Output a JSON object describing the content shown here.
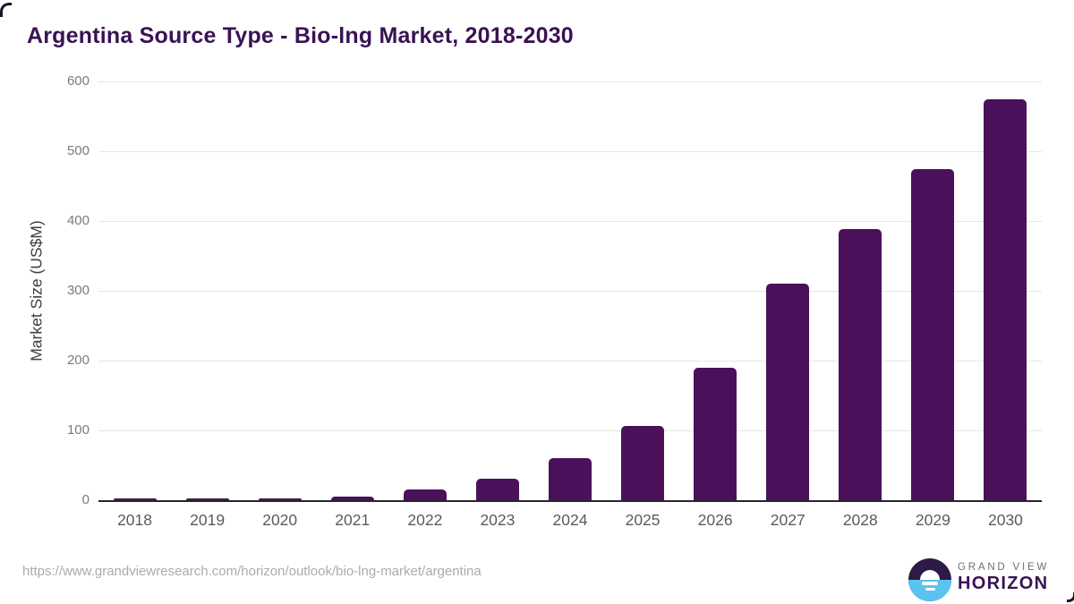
{
  "chart_data": {
    "type": "bar",
    "title": "Argentina Source Type - Bio-lng Market, 2018-2030",
    "xlabel": "",
    "ylabel": "Market Size (US$M)",
    "categories": [
      "2018",
      "2019",
      "2020",
      "2021",
      "2022",
      "2023",
      "2024",
      "2025",
      "2026",
      "2027",
      "2028",
      "2029",
      "2030"
    ],
    "values": [
      2,
      2.5,
      3,
      5,
      15,
      31,
      60,
      107,
      190,
      310,
      388,
      475,
      574
    ],
    "ylim": [
      0,
      600
    ],
    "yticks": [
      0,
      100,
      200,
      300,
      400,
      500,
      600
    ],
    "grid": true,
    "legend": "none",
    "bar_color": "#4a115a"
  },
  "footer": {
    "source_url": "https://www.grandviewresearch.com/horizon/outlook/bio-lng-market/argentina",
    "logo": {
      "line1": "GRAND VIEW",
      "line2": "HORIZON"
    }
  },
  "colors": {
    "title": "#3a1254",
    "bar": "#4a115a",
    "gridline": "#e6e6e6",
    "axis_line": "#26262b",
    "tick_label": "#7b7b7b",
    "x_label": "#5b5b5b",
    "url_text": "#ababab",
    "logo_dark": "#2e1a47",
    "logo_blue": "#5bc3ef",
    "logo_purple": "#3a1353"
  }
}
